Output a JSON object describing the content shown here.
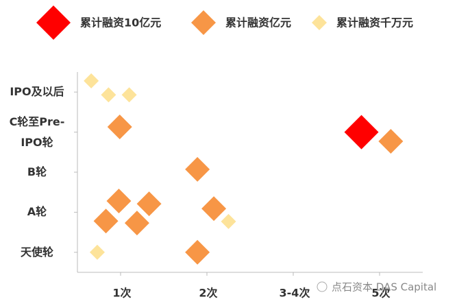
{
  "chart_data": {
    "type": "scatter",
    "series": [
      {
        "name": "累计融资10亿元",
        "color": "#ff0000",
        "x": [
          3.79
        ],
        "y": [
          4.0
        ]
      },
      {
        "name": "累计融资亿元",
        "color": "#f79646",
        "x": [
          0.99,
          4.13,
          1.89,
          0.98,
          1.33,
          0.83,
          1.19,
          2.08,
          1.89
        ],
        "y": [
          4.13,
          3.77,
          3.07,
          2.28,
          2.21,
          1.78,
          1.73,
          2.09,
          1.0
        ]
      },
      {
        "name": "累计融资千万元",
        "color": "#fde39a",
        "x": [
          0.66,
          0.86,
          1.1,
          2.25,
          0.73
        ],
        "y": [
          5.28,
          4.93,
          4.93,
          1.77,
          1.0
        ]
      }
    ],
    "xlim": [
      0.5,
      4.5
    ],
    "xticks": [
      {
        "value": 1,
        "label": "1次"
      },
      {
        "value": 2,
        "label": "2次"
      },
      {
        "value": 3,
        "label": "3-4次"
      },
      {
        "value": 4,
        "label": "5次"
      }
    ],
    "ylim": [
      0.5,
      5.5
    ],
    "yticks": [
      {
        "value": 1,
        "label": "天使轮"
      },
      {
        "value": 2,
        "label": "A轮"
      },
      {
        "value": 3,
        "label": "B轮"
      },
      {
        "value": 4,
        "label": "C轮至Pre-\nIPO轮"
      },
      {
        "value": 5,
        "label": "IPO及以后"
      }
    ],
    "legend": "top",
    "watermark": "点石资本 DAS Capital"
  }
}
